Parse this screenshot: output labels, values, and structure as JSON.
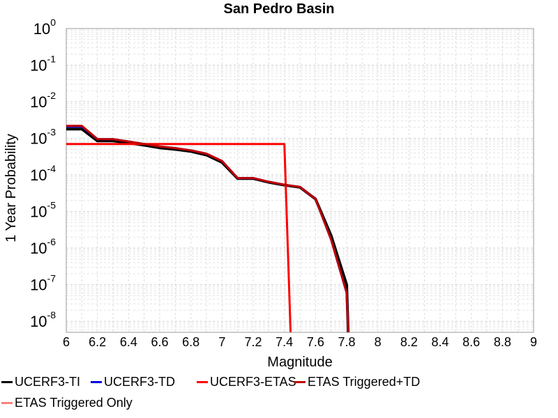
{
  "chart_data": {
    "type": "line",
    "title": "San Pedro Basin",
    "xlabel": "Magnitude",
    "ylabel": "1 Year Probability",
    "xlim": [
      6,
      9
    ],
    "ylim": [
      5e-09,
      1
    ],
    "y_scale": "log",
    "grid": true,
    "legend_position": "bottom",
    "x_ticks": [
      "6",
      "6.2",
      "6.4",
      "6.6",
      "6.8",
      "7",
      "7.2",
      "7.4",
      "7.6",
      "7.8",
      "8",
      "8.2",
      "8.4",
      "8.6",
      "8.8",
      "9"
    ],
    "y_ticks": [
      {
        "base": "10",
        "exp": "0",
        "value": 1
      },
      {
        "base": "10",
        "exp": "-1",
        "value": 0.1
      },
      {
        "base": "10",
        "exp": "-2",
        "value": 0.01
      },
      {
        "base": "10",
        "exp": "-3",
        "value": 0.001
      },
      {
        "base": "10",
        "exp": "-4",
        "value": 0.0001
      },
      {
        "base": "10",
        "exp": "-5",
        "value": 1e-05
      },
      {
        "base": "10",
        "exp": "-6",
        "value": 1e-06
      },
      {
        "base": "10",
        "exp": "-7",
        "value": 1e-07
      },
      {
        "base": "10",
        "exp": "-8",
        "value": 1e-08
      }
    ],
    "series": [
      {
        "name": "UCERF3-TI",
        "color": "#000000",
        "x": [
          6.0,
          6.1,
          6.2,
          6.3,
          6.4,
          6.5,
          6.6,
          6.7,
          6.8,
          6.9,
          7.0,
          7.1,
          7.2,
          7.3,
          7.4,
          7.5,
          7.6,
          7.7,
          7.8,
          7.81
        ],
        "y": [
          0.0018,
          0.0018,
          0.00085,
          0.00085,
          0.00075,
          0.00065,
          0.00055,
          0.0005,
          0.00044,
          0.00035,
          0.00022,
          8e-05,
          8e-05,
          6.3e-05,
          5.3e-05,
          4.6e-05,
          2.2e-05,
          2.2e-06,
          1e-07,
          5e-09
        ]
      },
      {
        "name": "UCERF3-TD",
        "color": "#0000dd",
        "x": [
          6.0,
          6.1,
          6.2,
          6.3,
          6.4,
          6.5,
          6.6,
          6.7,
          6.8,
          6.9,
          7.0,
          7.1,
          7.2,
          7.3,
          7.4,
          7.5,
          7.6,
          7.7,
          7.8,
          7.81
        ],
        "y": [
          0.0021,
          0.0021,
          0.00095,
          0.00095,
          0.00082,
          0.0007,
          0.0006,
          0.00054,
          0.00047,
          0.00038,
          0.00024,
          8.2e-05,
          8.2e-05,
          6.5e-05,
          5.4e-05,
          4.7e-05,
          2.2e-05,
          1.7e-06,
          6e-08,
          5e-09
        ]
      },
      {
        "name": "UCERF3-ETAS",
        "color": "#ff0000",
        "x": [
          6.0,
          7.4,
          7.44
        ],
        "y": [
          0.0007,
          0.0007,
          5e-09
        ]
      },
      {
        "name": "ETAS Triggered+TD",
        "color": "#c00000",
        "x": [
          6.0,
          6.1,
          6.2,
          6.3,
          6.4,
          6.5,
          6.6,
          6.7,
          6.8,
          6.9,
          7.0,
          7.1,
          7.2,
          7.3,
          7.4,
          7.5,
          7.6,
          7.7,
          7.8,
          7.81
        ],
        "y": [
          0.0022,
          0.0022,
          0.00095,
          0.00095,
          0.00082,
          0.0007,
          0.0006,
          0.00054,
          0.00047,
          0.00038,
          0.00024,
          8.2e-05,
          8.2e-05,
          6.5e-05,
          5.4e-05,
          4.7e-05,
          2.2e-05,
          1.7e-06,
          6e-08,
          5e-09
        ]
      },
      {
        "name": "ETAS Triggered Only",
        "color": "#ff8080",
        "x": [],
        "y": []
      }
    ]
  }
}
